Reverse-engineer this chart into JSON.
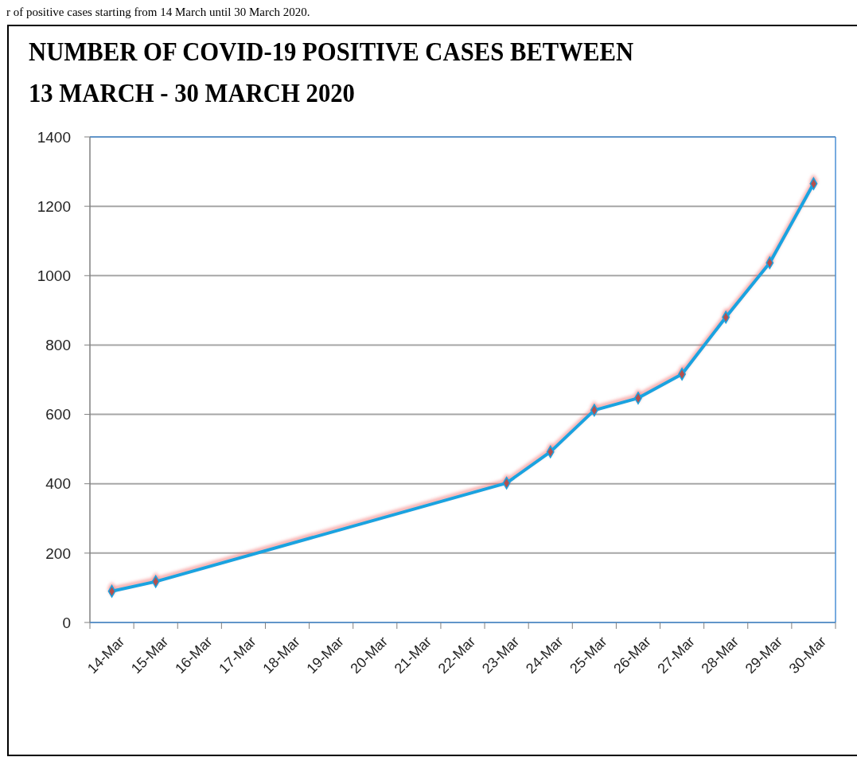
{
  "chart_data": {
    "type": "line",
    "title": "NUMBER OF COVID-19 POSITIVE CASES BETWEEN\n13 MARCH - 30 MARCH 2020",
    "annotations": [
      "r of positive cases starting from 14 March until 30 March 2020."
    ],
    "categories": [
      "14-Mar",
      "15-Mar",
      "16-Mar",
      "17-Mar",
      "18-Mar",
      "19-Mar",
      "20-Mar",
      "21-Mar",
      "22-Mar",
      "23-Mar",
      "24-Mar",
      "25-Mar",
      "26-Mar",
      "27-Mar",
      "28-Mar",
      "29-Mar",
      "30-Mar"
    ],
    "series": [
      {
        "color": "#1aa3e0",
        "values": [
          90,
          118,
          null,
          null,
          null,
          null,
          null,
          null,
          null,
          402,
          492,
          612,
          647,
          716,
          880,
          1037,
          1265
        ]
      }
    ],
    "ylim": [
      0,
      1400
    ],
    "yticks": [
      0,
      200,
      400,
      600,
      800,
      1000,
      1200,
      1400
    ],
    "grid": "y",
    "marker": "diamond",
    "line_style": "solid"
  }
}
